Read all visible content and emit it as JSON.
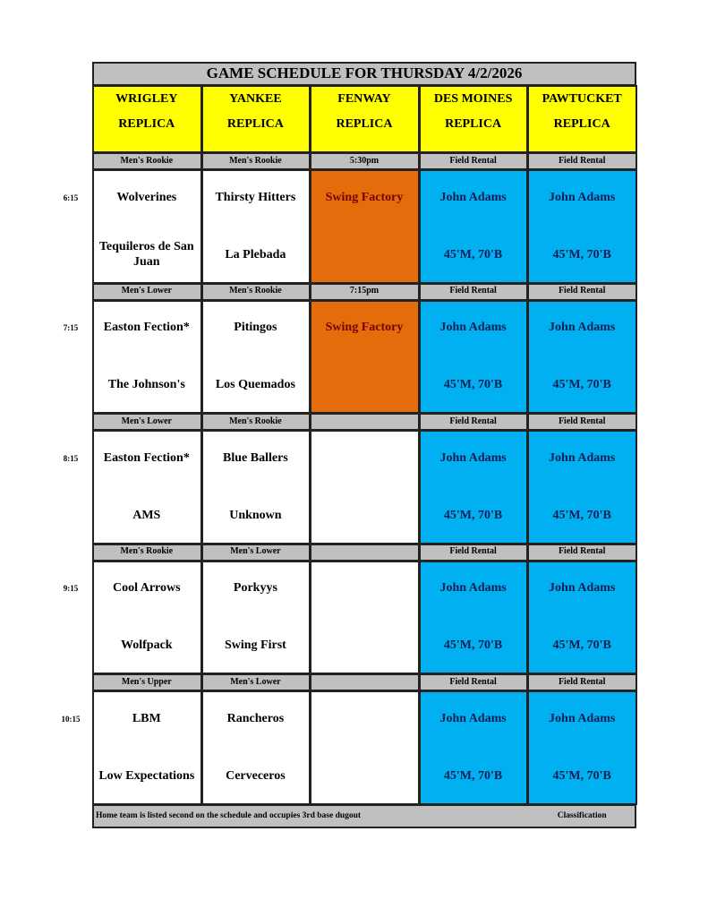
{
  "title": "GAME SCHEDULE FOR THURSDAY 4/2/2026",
  "columns": [
    [
      "WRIGLEY",
      "REPLICA"
    ],
    [
      "YANKEE",
      "REPLICA"
    ],
    [
      "FENWAY",
      "REPLICA"
    ],
    [
      "DES MOINES",
      "REPLICA"
    ],
    [
      "PAWTUCKET",
      "REPLICA"
    ]
  ],
  "blocks": [
    {
      "time": "6:15",
      "classes": [
        "Men's Rookie",
        "Men's Rookie",
        "5:30pm",
        "Field Rental",
        "Field Rental"
      ],
      "rows": [
        [
          "Wolverines",
          "Thirsty Hitters",
          "Swing Factory",
          "John Adams",
          "John Adams"
        ],
        [
          "Tequileros de San Juan",
          "La Plebada",
          null,
          "45'M, 70'B",
          "45'M, 70'B"
        ]
      ]
    },
    {
      "time": "7:15",
      "classes": [
        "Men's Lower",
        "Men's Rookie",
        "7:15pm",
        "Field Rental",
        "Field Rental"
      ],
      "rows": [
        [
          "Easton Fection*",
          "Pitingos",
          "Swing Factory",
          "John Adams",
          "John Adams"
        ],
        [
          "The Johnson's",
          "Los Quemados",
          null,
          "45'M, 70'B",
          "45'M, 70'B"
        ]
      ]
    },
    {
      "time": "8:15",
      "classes": [
        "Men's Lower",
        "Men's Rookie",
        null,
        "Field Rental",
        "Field Rental"
      ],
      "rows": [
        [
          "Easton Fection*",
          "Blue Ballers",
          null,
          "John Adams",
          "John Adams"
        ],
        [
          "AMS",
          "Unknown",
          null,
          "45'M, 70'B",
          "45'M, 70'B"
        ]
      ]
    },
    {
      "time": "9:15",
      "classes": [
        "Men's Rookie",
        "Men's Lower",
        null,
        "Field Rental",
        "Field Rental"
      ],
      "rows": [
        [
          "Cool Arrows",
          "Porkyys",
          null,
          "John Adams",
          "John Adams"
        ],
        [
          "Wolfpack",
          "Swing First",
          null,
          "45'M, 70'B",
          "45'M, 70'B"
        ]
      ]
    },
    {
      "time": "10:15",
      "classes": [
        "Men's Upper",
        "Men's Lower",
        null,
        "Field Rental",
        "Field Rental"
      ],
      "rows": [
        [
          "LBM",
          "Rancheros",
          null,
          "John Adams",
          "John Adams"
        ],
        [
          "Low Expectations",
          "Cerveceros",
          null,
          "45'M, 70'B",
          "45'M, 70'B"
        ]
      ]
    }
  ],
  "footer": {
    "note": "Home team is listed second on the schedule and occupies 3rd base dugout",
    "legend": "Classification"
  }
}
